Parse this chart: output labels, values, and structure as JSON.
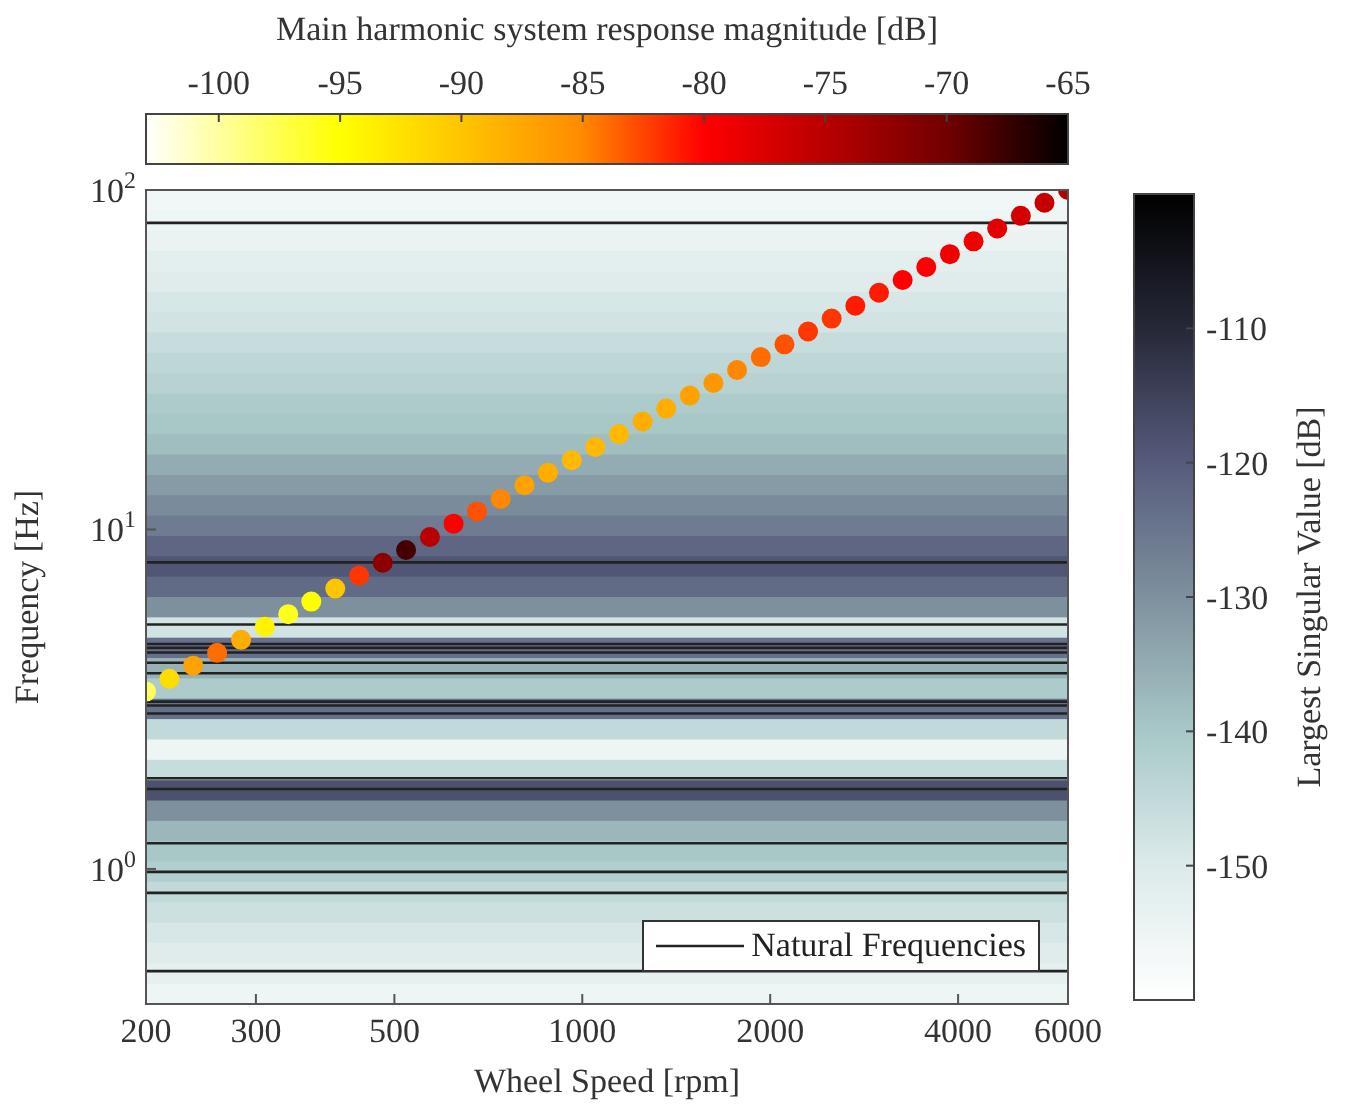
{
  "chart_data": [
    {
      "type": "heatmap",
      "clabel": "Largest Singular Value [dB]",
      "clim": [
        -160,
        -100
      ],
      "cticks": [
        -150,
        -140,
        -130,
        -120,
        -110
      ],
      "categories": [
        null
      ],
      "y_categories": [
        null,
        null,
        null,
        null,
        null,
        null,
        null,
        null,
        null,
        null,
        null,
        null,
        null,
        null,
        null,
        null,
        null,
        null,
        null,
        null,
        null,
        null,
        null,
        null,
        null,
        null,
        null,
        null,
        null,
        null,
        null,
        null,
        null,
        null,
        null,
        null,
        null,
        null,
        null,
        null
      ],
      "cells": [
        [
          -156
        ],
        [
          -155
        ],
        [
          -154
        ],
        [
          -152
        ],
        [
          -151
        ],
        [
          -149
        ],
        [
          -148
        ],
        [
          -146
        ],
        [
          -144
        ],
        [
          -143
        ],
        [
          -141
        ],
        [
          -140
        ],
        [
          -138
        ],
        [
          -135
        ],
        [
          -132
        ],
        [
          -129
        ],
        [
          -126
        ],
        [
          -122
        ],
        [
          -119
        ],
        [
          -123
        ],
        [
          -130
        ],
        [
          -148
        ],
        [
          -124
        ],
        [
          -136
        ],
        [
          -141
        ],
        [
          -124
        ],
        [
          -145
        ],
        [
          -155
        ],
        [
          -146
        ],
        [
          -118
        ],
        [
          -130
        ],
        [
          -137
        ],
        [
          -140
        ],
        [
          -142
        ],
        [
          -145
        ],
        [
          -147
        ],
        [
          -149
        ],
        [
          -151
        ],
        [
          -153
        ],
        [
          -155
        ]
      ]
    },
    {
      "type": "line",
      "xlabel": "Wheel Speed [rpm]",
      "ylabel": "Frequency [Hz]",
      "clabel": "Main harmonic system response magnitude [dB]",
      "clim": [
        -103,
        -65
      ],
      "cticks": [
        -100,
        -95,
        -90,
        -85,
        -80,
        -75,
        -70,
        -65
      ],
      "log": "xy",
      "xlim": [
        200,
        6000
      ],
      "xticks": [
        200,
        300,
        500,
        1000,
        2000,
        4000,
        6000
      ],
      "ylim": [
        0.4,
        100
      ],
      "yticks": [
        {
          "value": 1,
          "label": "10$^{0}$"
        },
        {
          "value": 10,
          "label": "10$^{1}$"
        },
        {
          "value": 100,
          "label": "10$^{2}$"
        }
      ],
      "legend": "bottom right",
      "line_style": "solid",
      "series": [
        {
          "name": "Natural Frequencies",
          "color": "#222222",
          "x": [
            200,
            6000
          ],
          "values": [
            0.5,
            0.5
          ]
        },
        {
          "color": "#222222",
          "x": [
            200,
            6000
          ],
          "values": [
            0.85,
            0.85
          ]
        },
        {
          "color": "#222222",
          "x": [
            200,
            6000
          ],
          "values": [
            0.98,
            0.98
          ]
        },
        {
          "color": "#222222",
          "x": [
            200,
            6000
          ],
          "values": [
            1.19,
            1.19
          ]
        },
        {
          "color": "#222222",
          "x": [
            200,
            6000
          ],
          "values": [
            1.72,
            1.72
          ]
        },
        {
          "color": "#222222",
          "x": [
            200,
            6000
          ],
          "values": [
            1.85,
            1.85
          ]
        },
        {
          "color": "#222222",
          "x": [
            200,
            6000
          ],
          "values": [
            2.87,
            2.87
          ]
        },
        {
          "color": "#222222",
          "x": [
            200,
            6000
          ],
          "values": [
            3.03,
            3.03
          ]
        },
        {
          "color": "#222222",
          "x": [
            200,
            6000
          ],
          "values": [
            3.11,
            3.11
          ]
        },
        {
          "color": "#222222",
          "x": [
            200,
            6000
          ],
          "values": [
            3.77,
            3.77
          ]
        },
        {
          "color": "#222222",
          "x": [
            200,
            6000
          ],
          "values": [
            4.05,
            4.05
          ]
        },
        {
          "color": "#222222",
          "x": [
            200,
            6000
          ],
          "values": [
            4.34,
            4.34
          ]
        },
        {
          "color": "#222222",
          "x": [
            200,
            6000
          ],
          "values": [
            4.48,
            4.48
          ]
        },
        {
          "color": "#222222",
          "x": [
            200,
            6000
          ],
          "values": [
            4.6,
            4.6
          ]
        },
        {
          "color": "#222222",
          "x": [
            200,
            6000
          ],
          "values": [
            5.25,
            5.25
          ]
        },
        {
          "color": "#222222",
          "x": [
            200,
            6000
          ],
          "values": [
            8.0,
            8.0
          ]
        },
        {
          "color": "#222222",
          "x": [
            200,
            6000
          ],
          "values": [
            80,
            80
          ]
        },
        {
          "type": "scatter",
          "x": [
            200,
            218,
            238,
            260,
            284,
            310,
            338,
            368,
            402,
            439,
            479,
            522,
            570,
            622,
            678,
            740,
            808,
            881,
            962,
            1049,
            1145,
            1249,
            1363,
            1487,
            1622,
            1770,
            1932,
            2108,
            2300,
            2509,
            2738,
            2988,
            3260,
            3557,
            3881,
            4235,
            4621,
            5042,
            5501,
            6000
          ],
          "values": [
            3.33,
            3.63,
            3.97,
            4.33,
            4.73,
            5.17,
            5.63,
            6.13,
            6.7,
            7.32,
            7.98,
            8.7,
            9.5,
            10.4,
            11.3,
            12.3,
            13.5,
            14.7,
            16,
            17.5,
            19.1,
            20.8,
            22.7,
            24.8,
            27,
            29.5,
            32.2,
            35.1,
            38.3,
            41.8,
            45.6,
            49.8,
            54.3,
            59.3,
            64.7,
            70.6,
            77,
            84,
            91.7,
            100
          ],
          "colors": [
            "#ffff5f",
            "#ffdc00",
            "#ffa200",
            "#ff6d00",
            "#ffad00",
            "#fff300",
            "#ffff1f",
            "#ffff00",
            "#ffc500",
            "#ff3600",
            "#8d0000",
            "#440000",
            "#b80000",
            "#ff0000",
            "#ff5200",
            "#ff8800",
            "#ffa200",
            "#ffad00",
            "#ffb900",
            "#ffb900",
            "#ffb900",
            "#ffad00",
            "#ffad00",
            "#ffa200",
            "#ff9700",
            "#ff8800",
            "#ff6d00",
            "#ff5200",
            "#ff3600",
            "#ff3600",
            "#ff1b00",
            "#ff1b00",
            "#ff0000",
            "#ff0000",
            "#f10000",
            "#f10000",
            "#e20000",
            "#d40000",
            "#c60000",
            "#b80000"
          ]
        }
      ]
    }
  ]
}
